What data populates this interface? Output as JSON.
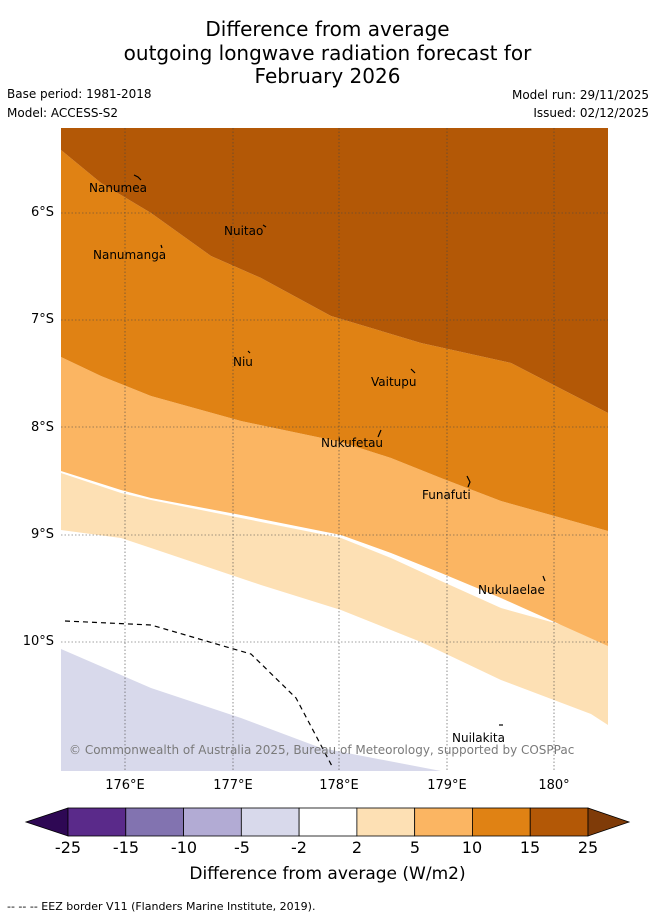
{
  "title": {
    "line1": "Difference from average",
    "line2": "outgoing longwave radiation forecast for",
    "line3": "February 2026"
  },
  "meta": {
    "base_period": "Base period: 1981-2018",
    "model": "Model: ACCESS-S2",
    "model_run": "Model run: 29/11/2025",
    "issued": "Issued: 02/12/2025"
  },
  "map": {
    "latitude_labels": [
      "6°S",
      "7°S",
      "8°S",
      "9°S",
      "10°S"
    ],
    "longitude_labels": [
      "176°E",
      "177°E",
      "178°E",
      "179°E",
      "180°"
    ],
    "places": [
      "Nanumea",
      "Nuitao",
      "Nanumanga",
      "Niu",
      "Vaitupu",
      "Nukufetau",
      "Funafuti",
      "Nukulaelae",
      "Nuilakita"
    ],
    "copyright": "© Commonwealth of Australia 2025, Bureau of Meteorology, supported by COSPPac"
  },
  "colorbar": {
    "title": "Difference from average (W/m2)",
    "tick_labels": [
      "-25",
      "-15",
      "-10",
      "-5",
      "-2",
      "2",
      "5",
      "10",
      "15",
      "25"
    ],
    "colors": [
      "#2e0854",
      "#5a2a8a",
      "#8273b0",
      "#b2abd4",
      "#d8d9eb",
      "#ffffff",
      "#fde0b4",
      "#fbb562",
      "#e08214",
      "#b35806",
      "#7f3b08"
    ]
  },
  "footer": "--  --  -- EEZ border V11 (Flanders Marine Institute, 2019)."
}
